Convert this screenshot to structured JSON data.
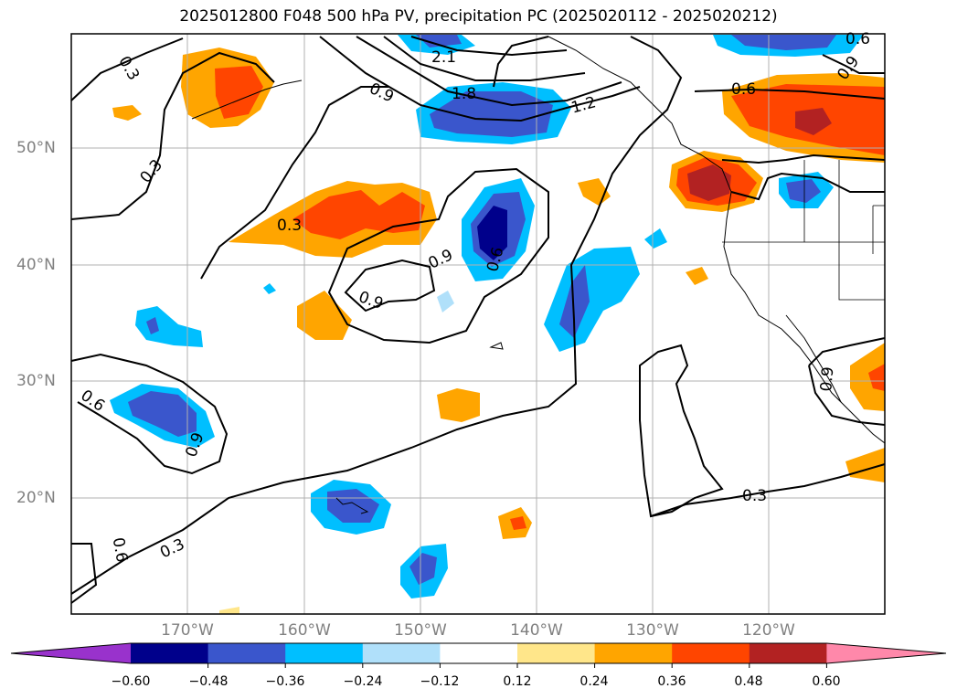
{
  "title": "2025012800 F048 500 hPa PV, precipitation PC (2025020112 - 2025020212)",
  "map": {
    "lat_labels": [
      "50°N",
      "40°N",
      "30°N",
      "20°N"
    ],
    "lon_labels": [
      "170°W",
      "160°W",
      "150°W",
      "140°W",
      "130°W",
      "120°W"
    ],
    "contour_labels": [
      "0.3",
      "0.3",
      "0.3",
      "0.3",
      "0.3",
      "0.6",
      "0.6",
      "0.6",
      "0.6",
      "0.9",
      "0.9",
      "0.9",
      "0.9",
      "0.9",
      "1.2",
      "1.8",
      "2.1",
      "0.6",
      "0.9"
    ]
  },
  "colorbar": {
    "ticks": [
      "−0.60",
      "−0.48",
      "−0.36",
      "−0.24",
      "−0.12",
      "0.12",
      "0.24",
      "0.36",
      "0.48",
      "0.60"
    ],
    "colors": [
      "#9932cc",
      "#00008b",
      "#3a56cc",
      "#00bfff",
      "#b0e0fa",
      "#ffffff",
      "#ffe68a",
      "#ffa500",
      "#ff4500",
      "#b22222",
      "#ff88aa"
    ]
  }
}
